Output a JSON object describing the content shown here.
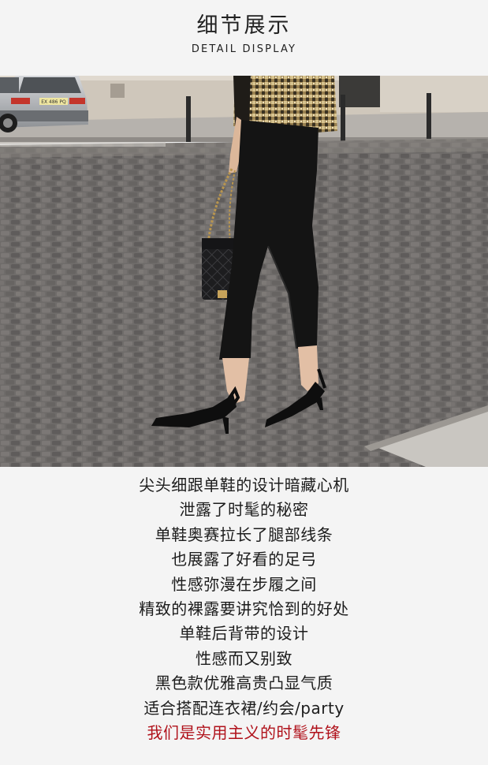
{
  "header": {
    "title_cn": "细节展示",
    "title_en": "DETAIL DISPLAY"
  },
  "photo": {
    "car_plate": "EX 486 PQ",
    "colors": {
      "pavement": "#6e6b69",
      "sidewalk": "#b9b5b0",
      "wall": "#cfc7bb",
      "trousers": "#141414",
      "jacket": "#b39a66"
    }
  },
  "description": {
    "lines": [
      "尖头细跟单鞋的设计暗藏心机",
      "泄露了时髦的秘密",
      "单鞋奥赛拉长了腿部线条",
      "也展露了好看的足弓",
      "性感弥漫在步履之间",
      "精致的裸露要讲究恰到的好处",
      "单鞋后背带的设计",
      "性感而又别致",
      "黑色款优雅高贵凸显气质",
      "适合搭配连衣裙/约会/party"
    ],
    "highlight": "我们是实用主义的时髦先锋",
    "highlight_color": "#b0121b"
  }
}
